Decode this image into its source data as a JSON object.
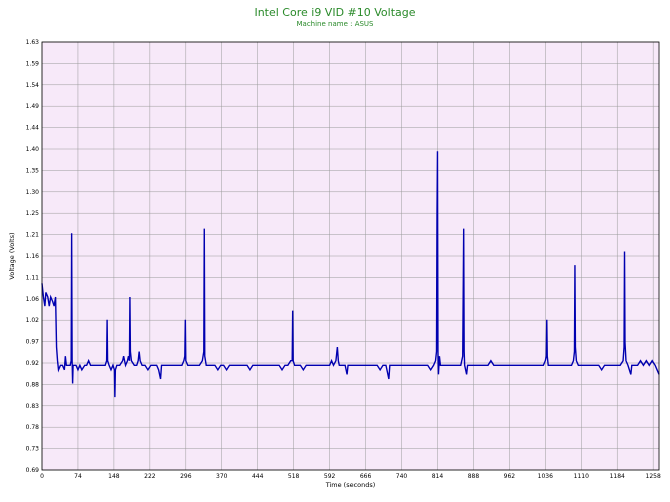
{
  "chart_data": {
    "type": "line",
    "title": "Intel Core i9 VID #10 Voltage",
    "subtitle": "Machine name : ASUS",
    "xlabel": "Time (seconds)",
    "ylabel": "Voltage (Volts)",
    "xlim": [
      0,
      1270
    ],
    "ylim": [
      0.69,
      1.63
    ],
    "x_ticks": [
      "0",
      "74",
      "148",
      "222",
      "296",
      "370",
      "444",
      "518",
      "592",
      "666",
      "740",
      "814",
      "888",
      "962",
      "1036",
      "1110",
      "1184",
      "1258"
    ],
    "y_ticks": [
      "1.63",
      "1.59",
      "1.54",
      "1.49",
      "1.44",
      "1.40",
      "1.35",
      "1.30",
      "1.25",
      "1.21",
      "1.16",
      "1.11",
      "1.06",
      "1.02",
      "0.97",
      "0.92",
      "0.88",
      "0.83",
      "0.78",
      "0.73",
      "0.69"
    ],
    "grid": true,
    "colors": {
      "plot_background": "#f7e9f9",
      "grid": "#9a9a9a",
      "line": "#0000b0",
      "title": "#2a8a2a"
    },
    "series": [
      {
        "values": [
          [
            0,
            1.1
          ],
          [
            3,
            1.07
          ],
          [
            6,
            1.05
          ],
          [
            8,
            1.08
          ],
          [
            12,
            1.07
          ],
          [
            15,
            1.05
          ],
          [
            18,
            1.07
          ],
          [
            22,
            1.06
          ],
          [
            25,
            1.05
          ],
          [
            28,
            1.07
          ],
          [
            30,
            0.96
          ],
          [
            32,
            0.93
          ],
          [
            34,
            0.91
          ],
          [
            38,
            0.92
          ],
          [
            42,
            0.92
          ],
          [
            46,
            0.91
          ],
          [
            48,
            0.94
          ],
          [
            50,
            0.92
          ],
          [
            54,
            0.92
          ],
          [
            58,
            0.92
          ],
          [
            60,
            0.93
          ],
          [
            61,
            1.21
          ],
          [
            62,
            0.93
          ],
          [
            63,
            0.88
          ],
          [
            64,
            0.92
          ],
          [
            70,
            0.92
          ],
          [
            74,
            0.91
          ],
          [
            78,
            0.92
          ],
          [
            82,
            0.91
          ],
          [
            88,
            0.92
          ],
          [
            92,
            0.92
          ],
          [
            96,
            0.93
          ],
          [
            100,
            0.92
          ],
          [
            105,
            0.92
          ],
          [
            110,
            0.92
          ],
          [
            118,
            0.92
          ],
          [
            124,
            0.92
          ],
          [
            130,
            0.92
          ],
          [
            133,
            0.93
          ],
          [
            134,
            1.02
          ],
          [
            135,
            0.93
          ],
          [
            138,
            0.92
          ],
          [
            142,
            0.91
          ],
          [
            146,
            0.92
          ],
          [
            149,
            0.91
          ],
          [
            150,
            0.85
          ],
          [
            151,
            0.91
          ],
          [
            154,
            0.92
          ],
          [
            160,
            0.92
          ],
          [
            166,
            0.93
          ],
          [
            168,
            0.94
          ],
          [
            170,
            0.93
          ],
          [
            172,
            0.92
          ],
          [
            176,
            0.93
          ],
          [
            178,
            0.94
          ],
          [
            180,
            0.93
          ],
          [
            181,
            1.07
          ],
          [
            182,
            0.95
          ],
          [
            184,
            0.93
          ],
          [
            190,
            0.92
          ],
          [
            195,
            0.92
          ],
          [
            198,
            0.93
          ],
          [
            200,
            0.95
          ],
          [
            202,
            0.93
          ],
          [
            206,
            0.92
          ],
          [
            212,
            0.92
          ],
          [
            218,
            0.91
          ],
          [
            224,
            0.92
          ],
          [
            230,
            0.92
          ],
          [
            236,
            0.92
          ],
          [
            240,
            0.91
          ],
          [
            244,
            0.89
          ],
          [
            246,
            0.92
          ],
          [
            252,
            0.92
          ],
          [
            258,
            0.92
          ],
          [
            264,
            0.92
          ],
          [
            270,
            0.92
          ],
          [
            276,
            0.92
          ],
          [
            282,
            0.92
          ],
          [
            288,
            0.92
          ],
          [
            292,
            0.93
          ],
          [
            294,
            0.94
          ],
          [
            295,
            1.02
          ],
          [
            296,
            0.93
          ],
          [
            300,
            0.92
          ],
          [
            306,
            0.92
          ],
          [
            312,
            0.92
          ],
          [
            318,
            0.92
          ],
          [
            324,
            0.92
          ],
          [
            330,
            0.93
          ],
          [
            333,
            0.95
          ],
          [
            334,
            1.22
          ],
          [
            335,
            0.94
          ],
          [
            338,
            0.92
          ],
          [
            344,
            0.92
          ],
          [
            350,
            0.92
          ],
          [
            356,
            0.92
          ],
          [
            362,
            0.91
          ],
          [
            368,
            0.92
          ],
          [
            374,
            0.92
          ],
          [
            380,
            0.91
          ],
          [
            386,
            0.92
          ],
          [
            392,
            0.92
          ],
          [
            398,
            0.92
          ],
          [
            404,
            0.92
          ],
          [
            410,
            0.92
          ],
          [
            416,
            0.92
          ],
          [
            422,
            0.92
          ],
          [
            428,
            0.91
          ],
          [
            434,
            0.92
          ],
          [
            440,
            0.92
          ],
          [
            446,
            0.92
          ],
          [
            452,
            0.92
          ],
          [
            458,
            0.92
          ],
          [
            464,
            0.92
          ],
          [
            470,
            0.92
          ],
          [
            476,
            0.92
          ],
          [
            482,
            0.92
          ],
          [
            488,
            0.92
          ],
          [
            494,
            0.91
          ],
          [
            500,
            0.92
          ],
          [
            506,
            0.92
          ],
          [
            512,
            0.93
          ],
          [
            515,
            0.93
          ],
          [
            516,
            1.04
          ],
          [
            517,
            0.93
          ],
          [
            520,
            0.92
          ],
          [
            526,
            0.92
          ],
          [
            532,
            0.92
          ],
          [
            538,
            0.91
          ],
          [
            544,
            0.92
          ],
          [
            550,
            0.92
          ],
          [
            556,
            0.92
          ],
          [
            562,
            0.92
          ],
          [
            568,
            0.92
          ],
          [
            574,
            0.92
          ],
          [
            580,
            0.92
          ],
          [
            586,
            0.92
          ],
          [
            592,
            0.92
          ],
          [
            596,
            0.93
          ],
          [
            600,
            0.92
          ],
          [
            605,
            0.93
          ],
          [
            608,
            0.96
          ],
          [
            610,
            0.93
          ],
          [
            612,
            0.92
          ],
          [
            618,
            0.92
          ],
          [
            624,
            0.92
          ],
          [
            628,
            0.9
          ],
          [
            630,
            0.92
          ],
          [
            636,
            0.92
          ],
          [
            642,
            0.92
          ],
          [
            648,
            0.92
          ],
          [
            654,
            0.92
          ],
          [
            660,
            0.92
          ],
          [
            666,
            0.92
          ],
          [
            672,
            0.92
          ],
          [
            678,
            0.92
          ],
          [
            684,
            0.92
          ],
          [
            690,
            0.92
          ],
          [
            696,
            0.91
          ],
          [
            702,
            0.92
          ],
          [
            708,
            0.92
          ],
          [
            714,
            0.89
          ],
          [
            716,
            0.92
          ],
          [
            722,
            0.92
          ],
          [
            728,
            0.92
          ],
          [
            734,
            0.92
          ],
          [
            740,
            0.92
          ],
          [
            746,
            0.92
          ],
          [
            752,
            0.92
          ],
          [
            758,
            0.92
          ],
          [
            764,
            0.92
          ],
          [
            770,
            0.92
          ],
          [
            776,
            0.92
          ],
          [
            782,
            0.92
          ],
          [
            788,
            0.92
          ],
          [
            794,
            0.92
          ],
          [
            800,
            0.91
          ],
          [
            806,
            0.92
          ],
          [
            810,
            0.93
          ],
          [
            812,
            0.95
          ],
          [
            813,
            1.25
          ],
          [
            814,
            1.39
          ],
          [
            815,
            0.95
          ],
          [
            816,
            0.9
          ],
          [
            818,
            0.94
          ],
          [
            820,
            0.92
          ],
          [
            826,
            0.92
          ],
          [
            832,
            0.92
          ],
          [
            838,
            0.92
          ],
          [
            844,
            0.92
          ],
          [
            850,
            0.92
          ],
          [
            856,
            0.92
          ],
          [
            862,
            0.92
          ],
          [
            866,
            0.94
          ],
          [
            868,
            1.22
          ],
          [
            869,
            0.95
          ],
          [
            870,
            0.92
          ],
          [
            874,
            0.9
          ],
          [
            876,
            0.92
          ],
          [
            882,
            0.92
          ],
          [
            888,
            0.92
          ],
          [
            894,
            0.92
          ],
          [
            900,
            0.92
          ],
          [
            906,
            0.92
          ],
          [
            912,
            0.92
          ],
          [
            918,
            0.92
          ],
          [
            924,
            0.93
          ],
          [
            930,
            0.92
          ],
          [
            936,
            0.92
          ],
          [
            942,
            0.92
          ],
          [
            948,
            0.92
          ],
          [
            954,
            0.92
          ],
          [
            960,
            0.92
          ],
          [
            966,
            0.92
          ],
          [
            972,
            0.92
          ],
          [
            978,
            0.92
          ],
          [
            984,
            0.92
          ],
          [
            990,
            0.92
          ],
          [
            996,
            0.92
          ],
          [
            1002,
            0.92
          ],
          [
            1008,
            0.92
          ],
          [
            1014,
            0.92
          ],
          [
            1020,
            0.92
          ],
          [
            1026,
            0.92
          ],
          [
            1032,
            0.92
          ],
          [
            1036,
            0.93
          ],
          [
            1038,
            0.94
          ],
          [
            1039,
            1.02
          ],
          [
            1040,
            0.94
          ],
          [
            1042,
            0.92
          ],
          [
            1048,
            0.92
          ],
          [
            1054,
            0.92
          ],
          [
            1060,
            0.92
          ],
          [
            1066,
            0.92
          ],
          [
            1072,
            0.92
          ],
          [
            1078,
            0.92
          ],
          [
            1084,
            0.92
          ],
          [
            1090,
            0.92
          ],
          [
            1094,
            0.93
          ],
          [
            1096,
            0.95
          ],
          [
            1097,
            1.14
          ],
          [
            1098,
            0.96
          ],
          [
            1100,
            0.93
          ],
          [
            1104,
            0.92
          ],
          [
            1110,
            0.92
          ],
          [
            1116,
            0.92
          ],
          [
            1122,
            0.92
          ],
          [
            1128,
            0.92
          ],
          [
            1134,
            0.92
          ],
          [
            1140,
            0.92
          ],
          [
            1146,
            0.92
          ],
          [
            1152,
            0.91
          ],
          [
            1158,
            0.92
          ],
          [
            1164,
            0.92
          ],
          [
            1170,
            0.92
          ],
          [
            1176,
            0.92
          ],
          [
            1184,
            0.92
          ],
          [
            1190,
            0.92
          ],
          [
            1196,
            0.93
          ],
          [
            1198,
            0.96
          ],
          [
            1199,
            1.17
          ],
          [
            1200,
            0.97
          ],
          [
            1202,
            0.93
          ],
          [
            1206,
            0.92
          ],
          [
            1212,
            0.9
          ],
          [
            1214,
            0.92
          ],
          [
            1220,
            0.92
          ],
          [
            1226,
            0.92
          ],
          [
            1232,
            0.93
          ],
          [
            1238,
            0.92
          ],
          [
            1244,
            0.93
          ],
          [
            1250,
            0.92
          ],
          [
            1256,
            0.93
          ],
          [
            1262,
            0.92
          ],
          [
            1266,
            0.91
          ],
          [
            1270,
            0.9
          ]
        ]
      }
    ]
  }
}
